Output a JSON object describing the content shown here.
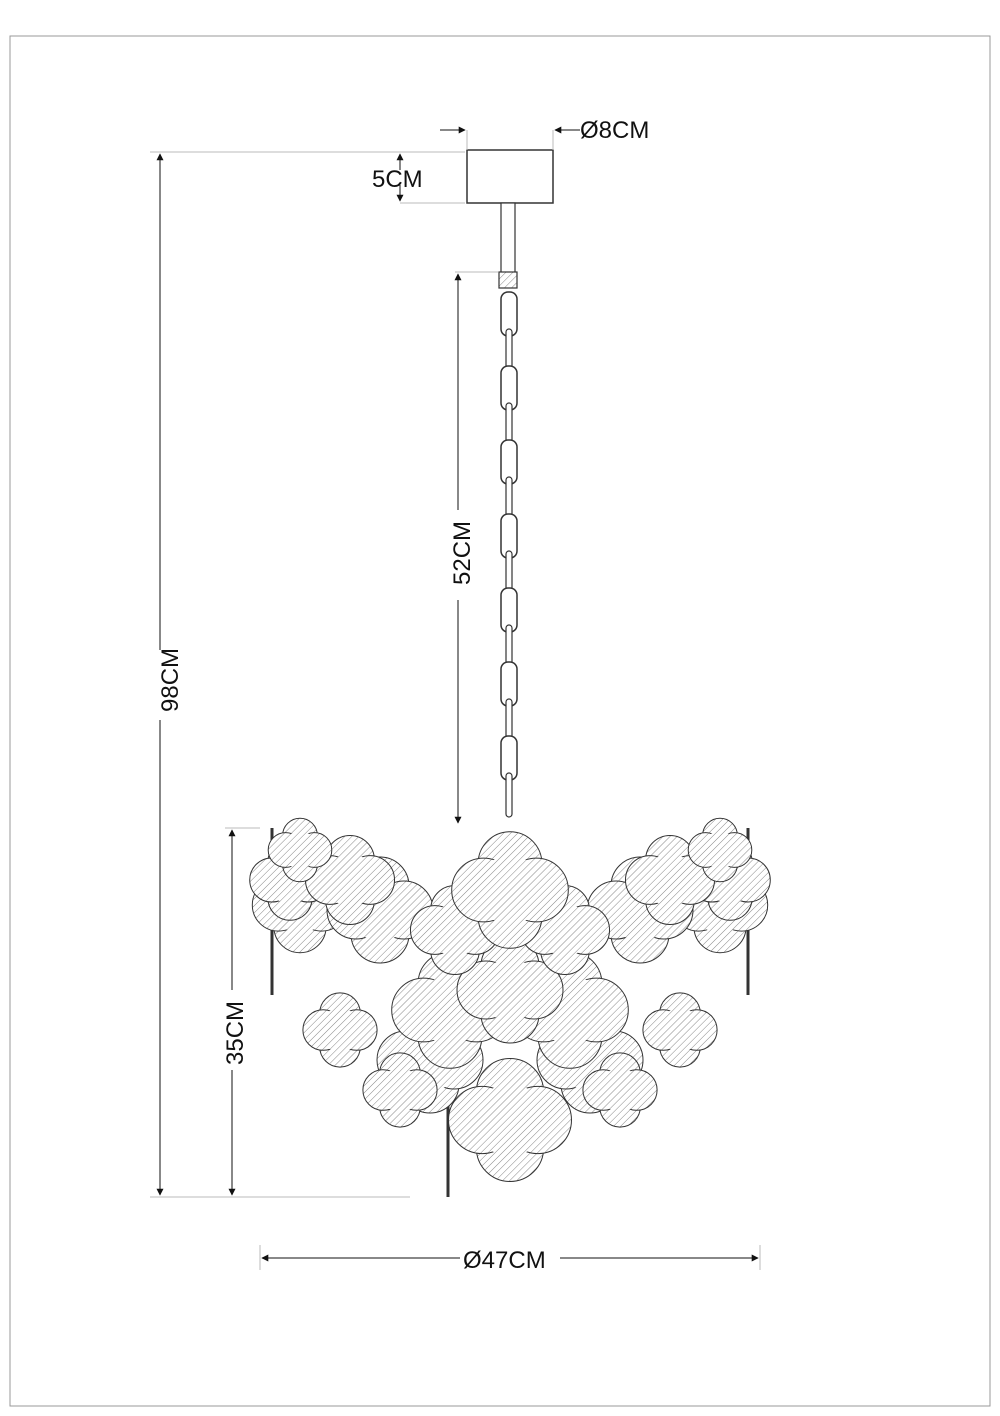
{
  "dimensions": {
    "canopy_diameter": "Ø8CM",
    "canopy_height": "5CM",
    "total_height": "98CM",
    "chain_length": "52CM",
    "shade_height": "35CM",
    "shade_diameter": "Ø47CM"
  },
  "colors": {
    "line": "#333333",
    "background": "#ffffff"
  }
}
